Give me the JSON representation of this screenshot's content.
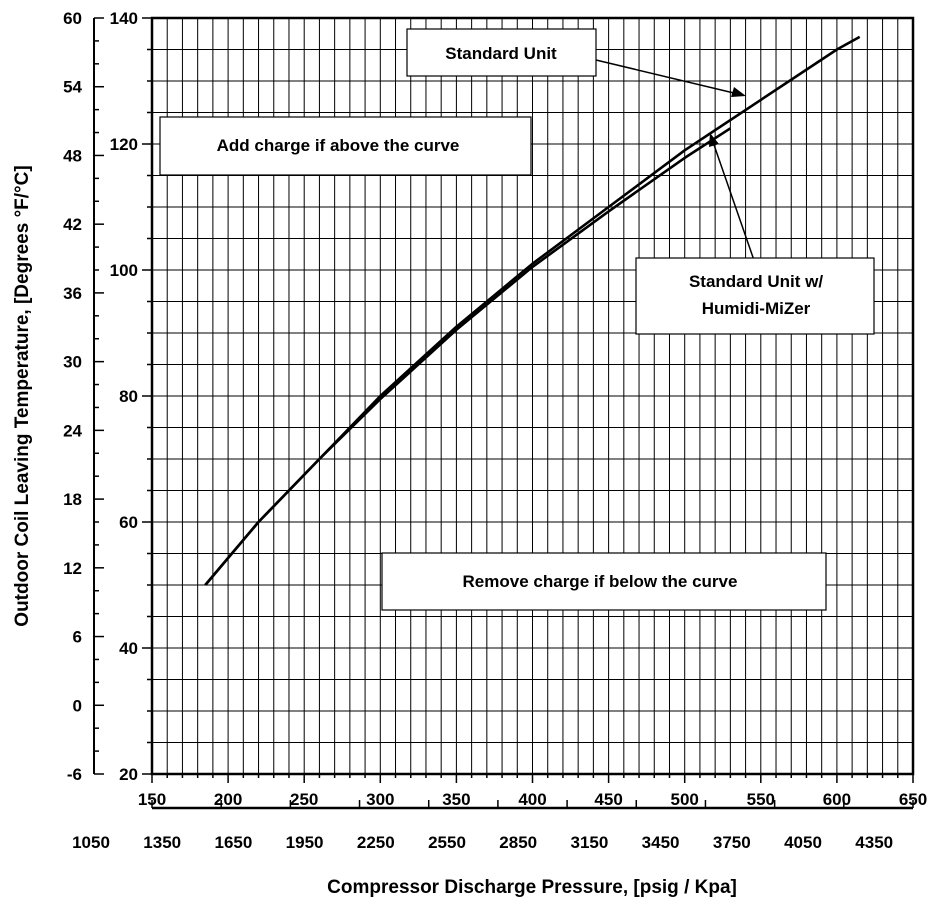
{
  "chart_data": {
    "type": "line",
    "xlabel": "Compressor Discharge Pressure, [psig / Kpa]",
    "ylabel": "Outdoor Coil Leaving Temperature, [Degrees °F/°C]",
    "xlim": [
      150,
      650
    ],
    "ylim": [
      20,
      140
    ],
    "x_ticks_psig": [
      150,
      200,
      250,
      300,
      350,
      400,
      450,
      500,
      550,
      600,
      650
    ],
    "x_ticks_kpa": [
      1050,
      1350,
      1650,
      1950,
      2250,
      2550,
      2850,
      3150,
      3450,
      3750,
      4050,
      4350
    ],
    "x_kpa_range": [
      1050,
      4350
    ],
    "y_ticks_f": [
      20,
      40,
      60,
      80,
      100,
      120,
      140
    ],
    "y_ticks_c": [
      -6,
      0,
      6,
      12,
      18,
      24,
      30,
      36,
      42,
      48,
      54,
      60
    ],
    "y_c_range": [
      -6,
      60
    ],
    "grid": true,
    "series": [
      {
        "name": "Standard Unit",
        "x": [
          185,
          220,
          260,
          300,
          350,
          400,
          450,
          500,
          550,
          600,
          615
        ],
        "y": [
          50,
          60,
          70,
          80,
          91,
          101,
          110,
          119,
          127,
          135,
          137
        ]
      },
      {
        "name": "Standard Unit w/ Humidi-MiZer",
        "x": [
          185,
          220,
          260,
          300,
          350,
          400,
          450,
          500,
          530
        ],
        "y": [
          50,
          60,
          70,
          79.5,
          90.5,
          100.5,
          109.3,
          117.8,
          122.5
        ]
      }
    ],
    "annotations": [
      {
        "text": "Standard Unit",
        "points_to": "Standard Unit"
      },
      {
        "text": "Add charge if above the curve"
      },
      {
        "text": "Standard Unit w/",
        "text2": "Humidi-MiZer",
        "points_to": "Standard Unit w/ Humidi-MiZer"
      },
      {
        "text": "Remove charge if below the curve"
      }
    ]
  }
}
